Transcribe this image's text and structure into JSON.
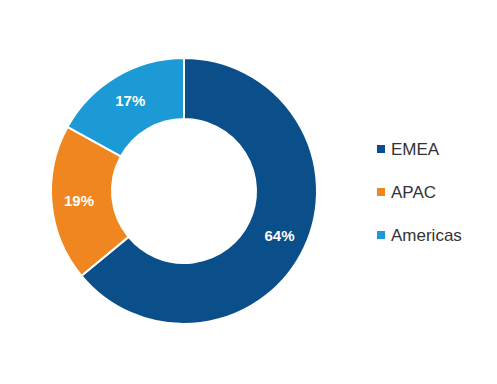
{
  "chart_data": {
    "type": "pie",
    "categories": [
      "EMEA",
      "APAC",
      "Americas"
    ],
    "values": [
      64,
      19,
      17
    ],
    "value_labels": [
      "64%",
      "19%",
      "17%"
    ],
    "colors": [
      "#0B4F8A",
      "#F0861F",
      "#1C9AD6"
    ],
    "data_labels": true,
    "legend": "right"
  }
}
